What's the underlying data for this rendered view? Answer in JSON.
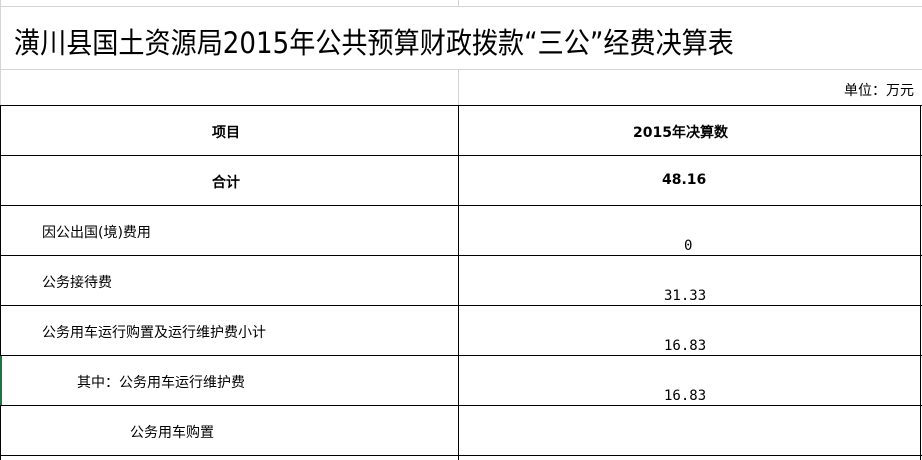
{
  "title": "潢川县国土资源局2015年公共预算财政拨款“三公”经费决算表",
  "unit": "单位：万元",
  "headers": {
    "item": "项目",
    "value": "2015年决算数"
  },
  "total": {
    "label": "合计",
    "value": "48.16"
  },
  "rows": [
    {
      "label": "因公出国(境)费用",
      "value": "0"
    },
    {
      "label": "公务接待费",
      "value": "31.33"
    },
    {
      "label": "公务用车运行购置及运行维护费小计",
      "value": "16.83"
    },
    {
      "label": "其中：公务用车运行维护费",
      "value": "16.83"
    },
    {
      "label": "公务用车购置",
      "value": ""
    }
  ]
}
